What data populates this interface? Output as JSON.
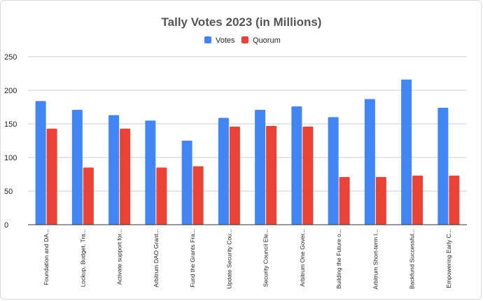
{
  "chart_data": {
    "type": "bar",
    "title": "Tally Votes 2023 (in Millions)",
    "xlabel": "",
    "ylabel": "",
    "ylim": [
      0,
      250
    ],
    "yticks": [
      0,
      50,
      100,
      150,
      200,
      250
    ],
    "grid": true,
    "legend_position": "top",
    "categories": [
      "Foundation and DA...",
      "Lockup, Budget, Tra...",
      "Activate support for...",
      "Arbitrum DAO Grant...",
      "Fund the Grants Fra...",
      "Update Security Cou...",
      "Security Council Ele...",
      "Arbitrum One Gover...",
      "Building the Future o...",
      "Arbitrum Short-term I...",
      "Backfund Successful...",
      "Empowering Early C..."
    ],
    "series": [
      {
        "name": "Votes",
        "color": "#4285f4",
        "values": [
          184,
          171,
          163,
          155,
          125,
          159,
          171,
          176,
          160,
          187,
          216,
          174
        ]
      },
      {
        "name": "Quorum",
        "color": "#ea4335",
        "values": [
          143,
          85,
          143,
          85,
          87,
          146,
          147,
          146,
          71,
          71,
          73,
          73
        ]
      }
    ]
  }
}
